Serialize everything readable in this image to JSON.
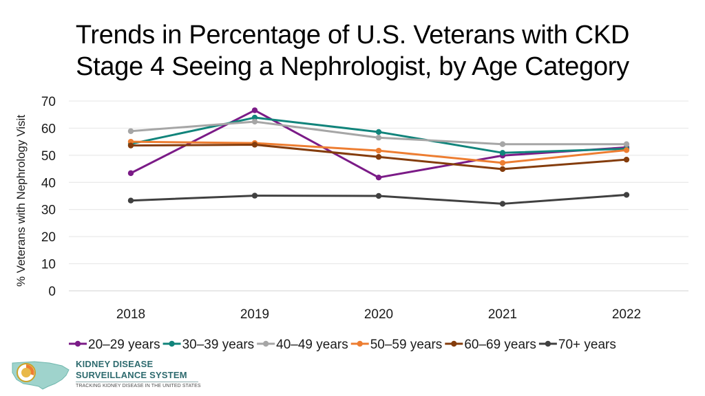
{
  "title": {
    "line1": "Trends in Percentage of U.S. Veterans with CKD",
    "line2": "Stage 4 Seeing a Nephrologist, by Age Category"
  },
  "logo": {
    "line1": "KIDNEY DISEASE",
    "line2": "SURVEILLANCE SYSTEM",
    "tagline": "TRACKING KIDNEY DISEASE IN THE UNITED STATES"
  },
  "chart_data": {
    "type": "line",
    "title": "Trends in Percentage of U.S. Veterans with CKD Stage 4 Seeing a Nephrologist, by Age Category",
    "xlabel": "",
    "ylabel": "% Veterans with Nephrology Visit",
    "categories": [
      "2018",
      "2019",
      "2020",
      "2021",
      "2022"
    ],
    "ylim": [
      0,
      70
    ],
    "yticks": [
      0,
      10,
      20,
      30,
      40,
      50,
      60,
      70
    ],
    "grid": true,
    "legend": "bottom",
    "series": [
      {
        "name": "20–29 years",
        "color": "#7b1b87",
        "values": [
          43.4,
          66.6,
          41.8,
          49.9,
          52.9
        ]
      },
      {
        "name": "30–39 years",
        "color": "#11847b",
        "values": [
          54.2,
          63.9,
          58.6,
          50.9,
          52.4
        ]
      },
      {
        "name": "40–49 years",
        "color": "#a6a6a6",
        "values": [
          58.9,
          62.4,
          56.5,
          54.1,
          54.1
        ]
      },
      {
        "name": "50–59 years",
        "color": "#ed7d31",
        "values": [
          55.0,
          54.5,
          51.7,
          47.2,
          51.9
        ]
      },
      {
        "name": "60–69 years",
        "color": "#843c0c",
        "values": [
          53.6,
          53.9,
          49.4,
          44.9,
          48.4
        ]
      },
      {
        "name": "70+ years",
        "color": "#404040",
        "values": [
          33.3,
          35.1,
          35.0,
          32.1,
          35.4
        ]
      }
    ]
  }
}
